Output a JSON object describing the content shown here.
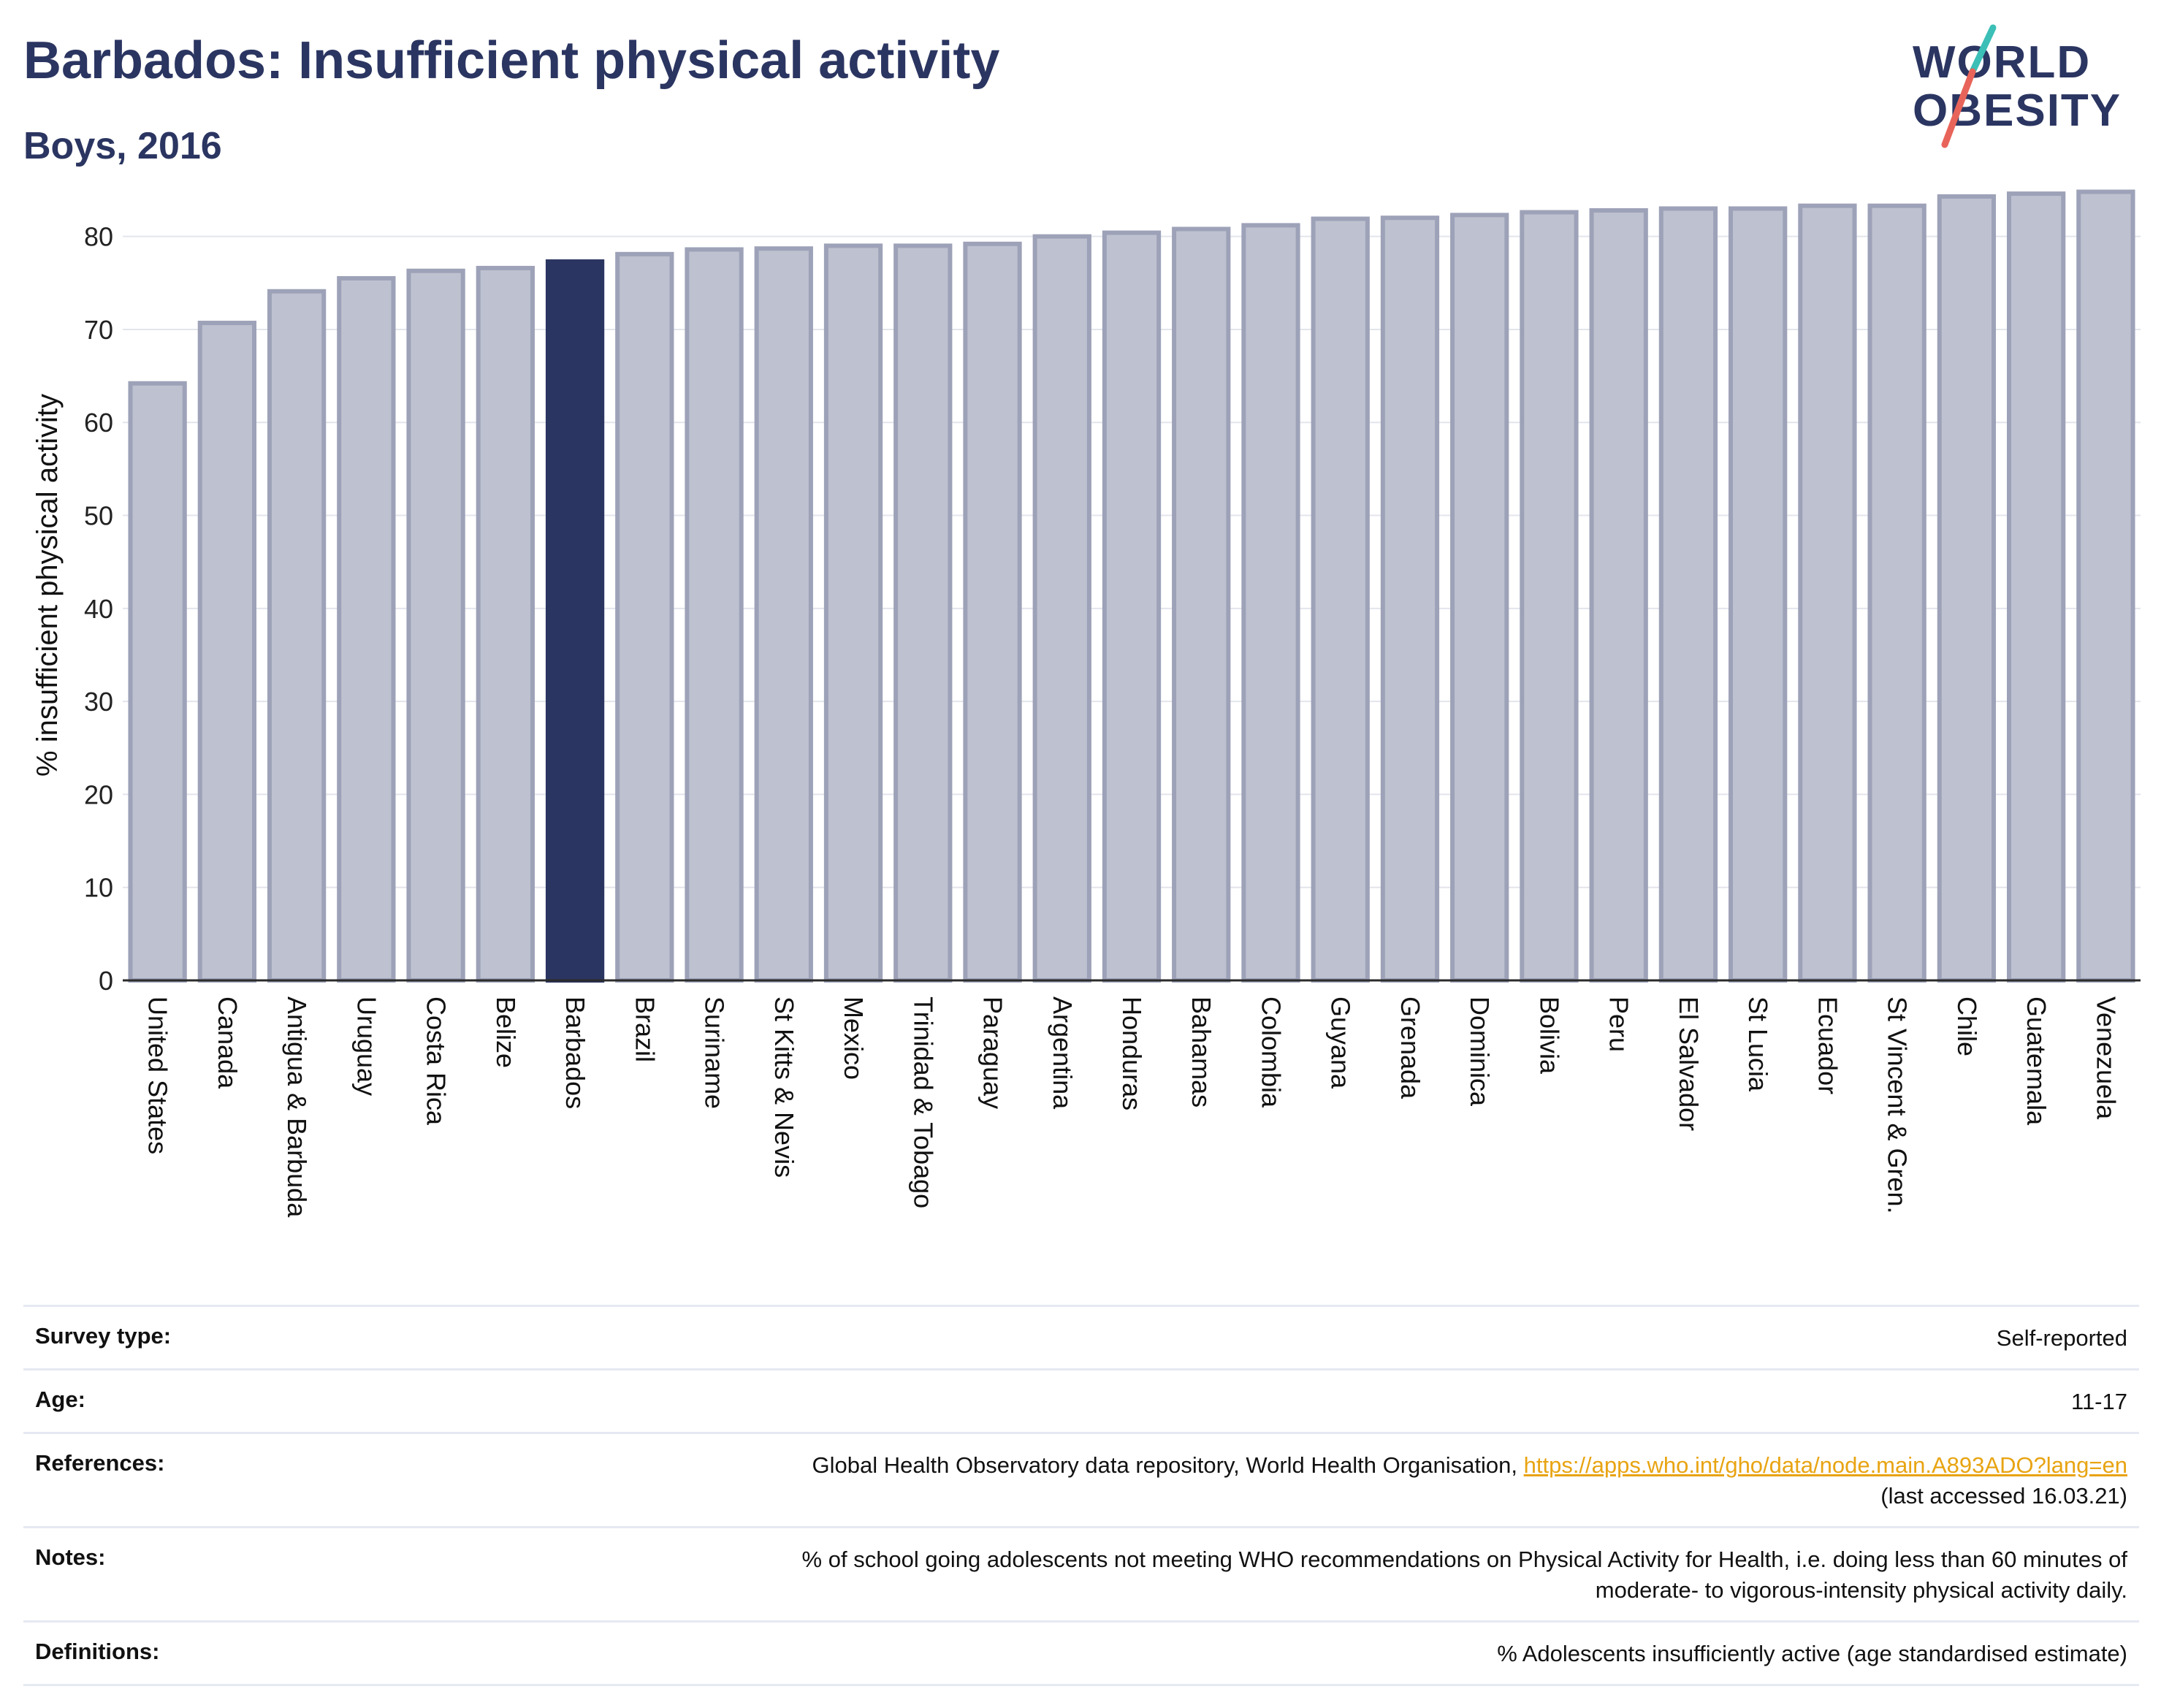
{
  "header": {
    "title": "Barbados: Insufficient physical activity",
    "subtitle": "Boys, 2016"
  },
  "logo": {
    "line1": "WORLD",
    "line2": "OBESITY",
    "colors": [
      "#2b3561",
      "#3bbfb7",
      "#e8645a"
    ]
  },
  "chart_data": {
    "type": "bar",
    "title": "",
    "xlabel": "",
    "ylabel": "% insufficient physical activity",
    "ylim": [
      0,
      85
    ],
    "yticks": [
      0,
      10,
      20,
      30,
      40,
      50,
      60,
      70,
      80
    ],
    "grid": true,
    "highlight": "Barbados",
    "colors": {
      "bar": "#bec1cf",
      "bar_edge": "#9da2b8",
      "highlight": "#2b3561"
    },
    "categories": [
      "United States",
      "Canada",
      "Antigua & Barbuda",
      "Uruguay",
      "Costa Rica",
      "Belize",
      "Barbados",
      "Brazil",
      "Suriname",
      "St Kitts & Nevis",
      "Mexico",
      "Trinidad & Tobago",
      "Paraguay",
      "Argentina",
      "Honduras",
      "Bahamas",
      "Colombia",
      "Guyana",
      "Grenada",
      "Dominica",
      "Bolivia",
      "Peru",
      "El Salvador",
      "St Lucia",
      "Ecuador",
      "St Vincent & Gren.",
      "Chile",
      "Guatemala",
      "Venezuela"
    ],
    "values": [
      64.2,
      70.7,
      74.1,
      75.5,
      76.3,
      76.6,
      77.3,
      78.1,
      78.6,
      78.7,
      79.0,
      79.0,
      79.2,
      80.0,
      80.4,
      80.8,
      81.2,
      81.9,
      82.0,
      82.3,
      82.6,
      82.8,
      83.0,
      83.0,
      83.3,
      83.3,
      84.3,
      84.6,
      84.8
    ]
  },
  "info": {
    "survey_type_label": "Survey type:",
    "survey_type_value": "Self-reported",
    "age_label": "Age:",
    "age_value": "11-17",
    "references_label": "References:",
    "references_text": "Global Health Observatory data repository, World Health Organisation,",
    "references_link": "https://apps.who.int/gho/data/node.main.A893ADO?lang=en",
    "references_accessed": "(last accessed 16.03.21)",
    "notes_label": "Notes:",
    "notes_line1": "% of school going adolescents not meeting WHO recommendations on Physical Activity for Health, i.e. doing less than 60 minutes of",
    "notes_line2": "moderate- to vigorous-intensity physical activity daily.",
    "definitions_label": "Definitions:",
    "definitions_value": "% Adolescents insufficiently active (age standardised estimate)"
  }
}
